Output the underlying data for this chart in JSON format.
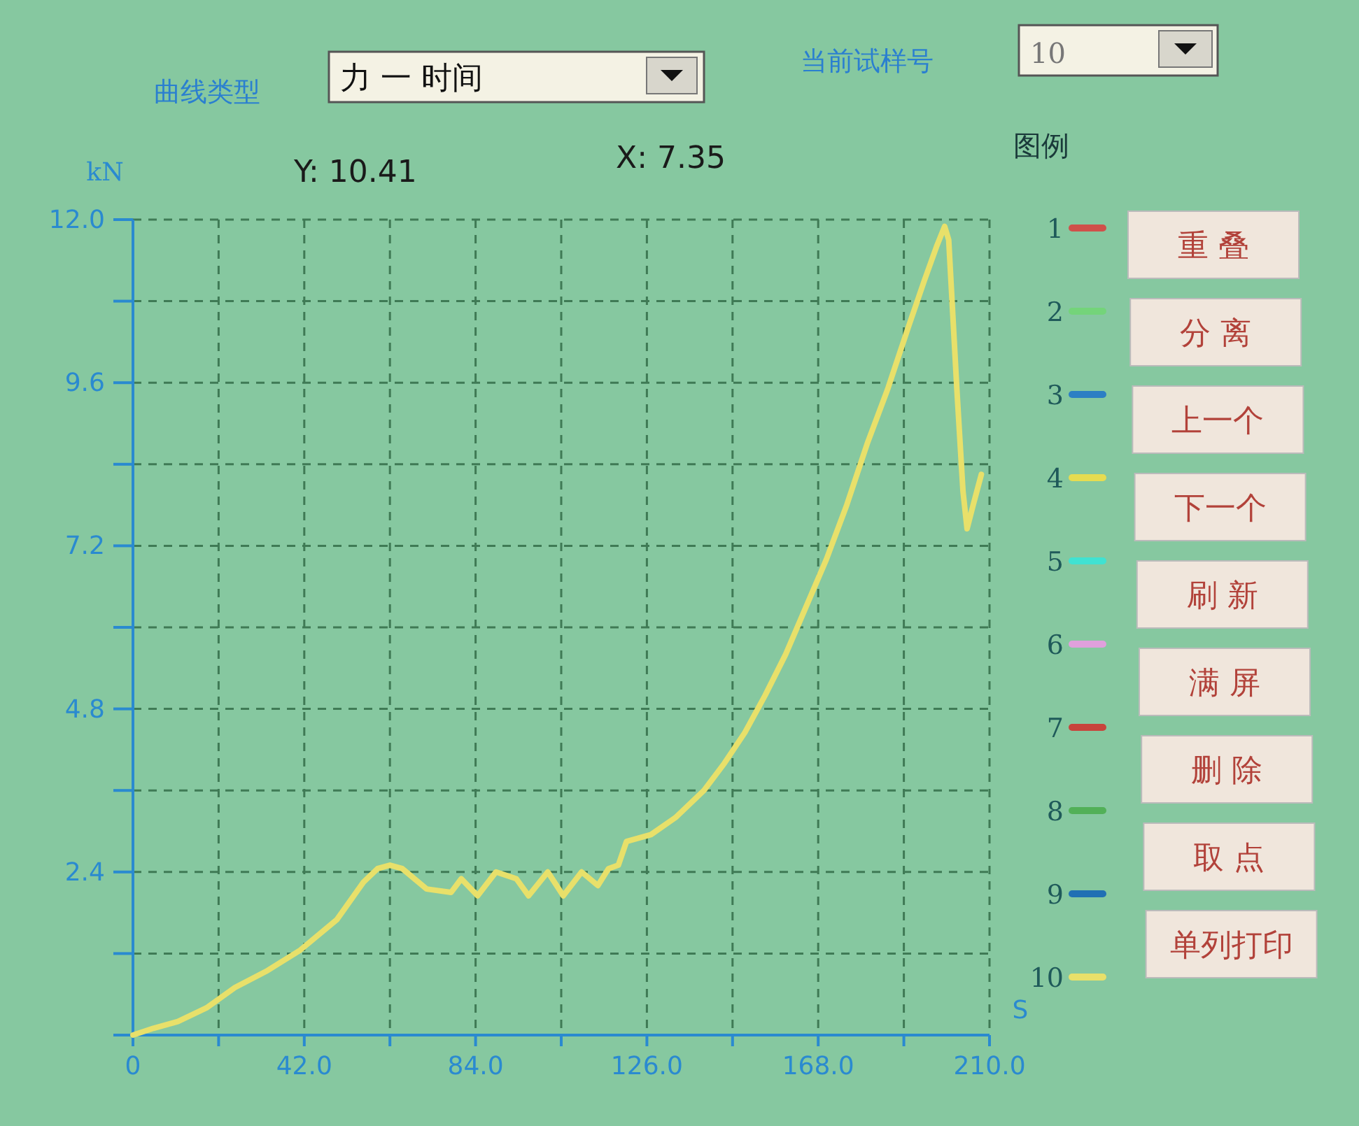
{
  "chart_data": {
    "type": "line",
    "xlabel": "S",
    "ylabel": "kN",
    "annotations": [
      "曲线类型",
      "力 一 时间",
      "当前试样号",
      "10",
      "图例",
      "Y: 10.41",
      "X: 7.35",
      "重 叠",
      "分 离",
      "上一个",
      "下一个",
      "刷 新",
      "满 屏",
      "删 除",
      "取 点",
      "单列打印"
    ],
    "xlim": [
      0,
      210
    ],
    "xticks": [
      0,
      {
        "value": 21,
        "label": null
      },
      {
        "value": 42,
        "label": "42.0"
      },
      {
        "value": 63,
        "label": null
      },
      {
        "value": 84,
        "label": "84.0"
      },
      {
        "value": 105,
        "label": null
      },
      {
        "value": 126,
        "label": "126.0"
      },
      {
        "value": 147,
        "label": null
      },
      {
        "value": 168,
        "label": "168.0"
      },
      {
        "value": 189,
        "label": null
      },
      {
        "value": 210,
        "label": "210.0"
      }
    ],
    "ylim": [
      0,
      12
    ],
    "yticks": [
      {
        "value": 0,
        "label": null
      },
      {
        "value": 1.2,
        "label": null
      },
      2.4,
      {
        "value": 3.6,
        "label": null
      },
      4.8,
      {
        "value": 6,
        "label": null
      },
      7.2,
      {
        "value": 8.4,
        "label": null
      },
      9.6,
      {
        "value": 10.8,
        "label": null
      },
      {
        "value": 12,
        "label": "12.0"
      }
    ],
    "grid": true,
    "legend": "right",
    "line_style": "solid",
    "series": [
      {
        "name": "1",
        "color": "#d0504a"
      },
      {
        "name": "2",
        "color": "#74d47a"
      },
      {
        "name": "3",
        "color": "#2c7fc4"
      },
      {
        "name": "4",
        "color": "#e6dc50"
      },
      {
        "name": "5",
        "color": "#40e2d2"
      },
      {
        "name": "6",
        "color": "#e0a0dc"
      },
      {
        "name": "7",
        "color": "#c8443c"
      },
      {
        "name": "8",
        "color": "#52b058"
      },
      {
        "name": "9",
        "color": "#2070b4"
      },
      {
        "name": "10",
        "color": "#e8e06a",
        "x": [
          0,
          5,
          11,
          18,
          25,
          33,
          41,
          50,
          56.5,
          60,
          63,
          66,
          72,
          78,
          80.5,
          84.5,
          89,
          94,
          97,
          101.7,
          105.5,
          110,
          114,
          116.6,
          119,
          121,
          127,
          133,
          140,
          145,
          150,
          155,
          160,
          165,
          170,
          175,
          180,
          185,
          190,
          194,
          197,
          199,
          200,
          202,
          203.5,
          204.5,
          206,
          208
        ],
        "values": [
          0,
          0.1,
          0.2,
          0.4,
          0.7,
          0.95,
          1.25,
          1.7,
          2.25,
          2.45,
          2.5,
          2.45,
          2.15,
          2.1,
          2.3,
          2.05,
          2.4,
          2.3,
          2.05,
          2.4,
          2.05,
          2.4,
          2.2,
          2.45,
          2.5,
          2.85,
          2.95,
          3.2,
          3.6,
          4.0,
          4.45,
          5.0,
          5.6,
          6.3,
          7.0,
          7.8,
          8.7,
          9.5,
          10.4,
          11.1,
          11.6,
          11.9,
          11.7,
          9.5,
          8.0,
          7.45,
          7.8,
          8.25
        ]
      }
    ]
  }
}
